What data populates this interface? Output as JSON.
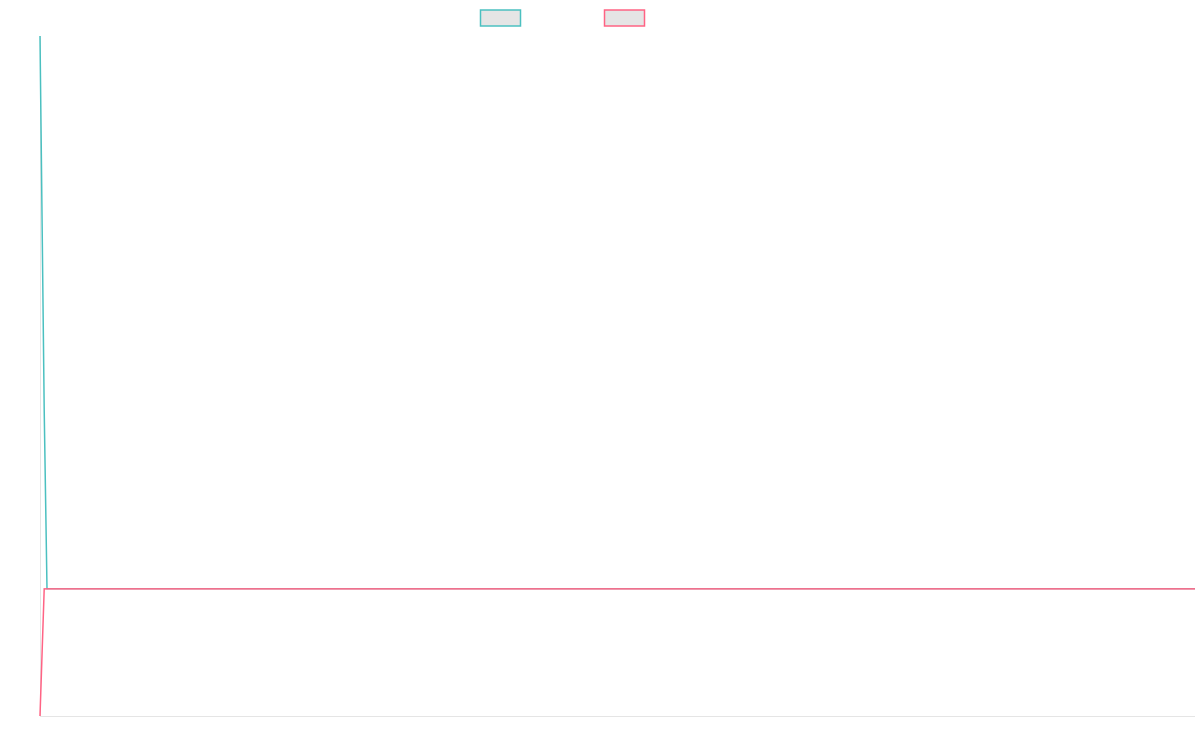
{
  "chart_data": {
    "type": "line",
    "title": "",
    "xlabel": "",
    "ylabel": "",
    "legend_position": "top",
    "grid": false,
    "x": [
      0,
      0.6,
      1,
      165
    ],
    "xlim": [
      0,
      165
    ],
    "ylim": [
      0,
      100
    ],
    "series": [
      {
        "name": "",
        "color": "#4bc0c0",
        "values": [
          100,
          45,
          18.7,
          18.7
        ]
      },
      {
        "name": "",
        "color": "#ff6384",
        "values": [
          0,
          18.7,
          18.7,
          18.7
        ]
      }
    ]
  }
}
